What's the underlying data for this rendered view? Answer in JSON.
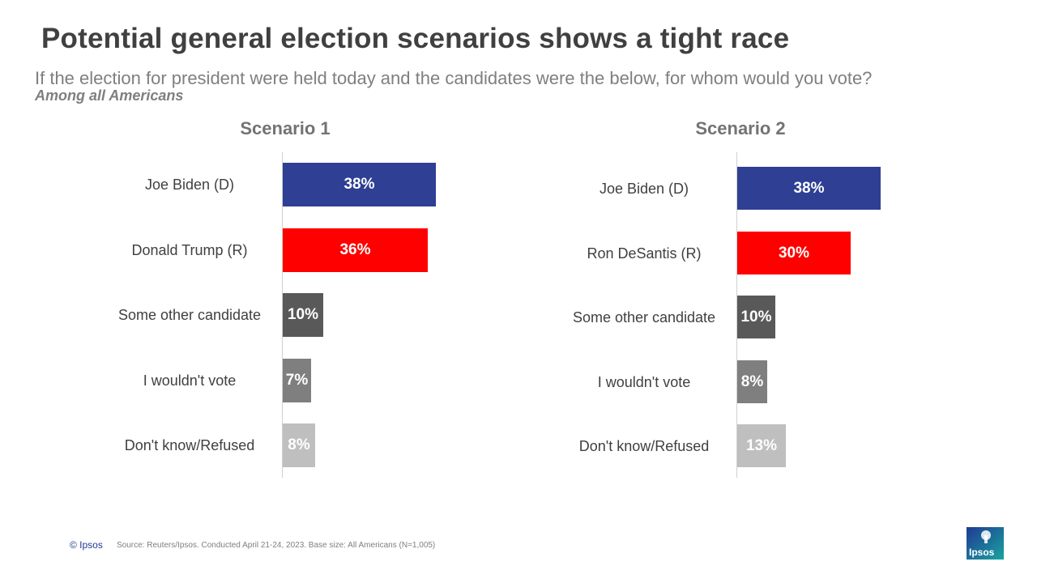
{
  "title": "Potential general election scenarios shows a tight race",
  "subtitle": "If the election for president were held today and the candidates were the below, for whom would you vote?",
  "base_note": "Among all Americans",
  "chart_data": [
    {
      "type": "bar",
      "orientation": "horizontal",
      "title": "Scenario 1",
      "categories": [
        "Joe Biden (D)",
        "Donald Trump (R)",
        "Some other candidate",
        "I wouldn't vote",
        "Don't know/Refused"
      ],
      "values": [
        38,
        36,
        10,
        7,
        8
      ],
      "data_labels": [
        "38%",
        "36%",
        "10%",
        "7%",
        "8%"
      ],
      "colors": [
        "#2e3f94",
        "#ff0000",
        "#595959",
        "#7f7f7f",
        "#bfbfbf"
      ],
      "unit": "%"
    },
    {
      "type": "bar",
      "orientation": "horizontal",
      "title": "Scenario 2",
      "categories": [
        "Joe Biden (D)",
        "Ron DeSantis (R)",
        "Some other candidate",
        "I wouldn't vote",
        "Don't know/Refused"
      ],
      "values": [
        38,
        30,
        10,
        8,
        13
      ],
      "data_labels": [
        "38%",
        "30%",
        "10%",
        "8%",
        "13%"
      ],
      "colors": [
        "#2e3f94",
        "#ff0000",
        "#595959",
        "#7f7f7f",
        "#bfbfbf"
      ],
      "unit": "%"
    }
  ],
  "footer": {
    "copyright": "© Ipsos",
    "source": "Source: Reuters/Ipsos. Conducted April 21-24, 2023. Base size: All Americans (N=1,005)",
    "logo_text": "Ipsos",
    "logo_color": "#0f5fa8"
  }
}
